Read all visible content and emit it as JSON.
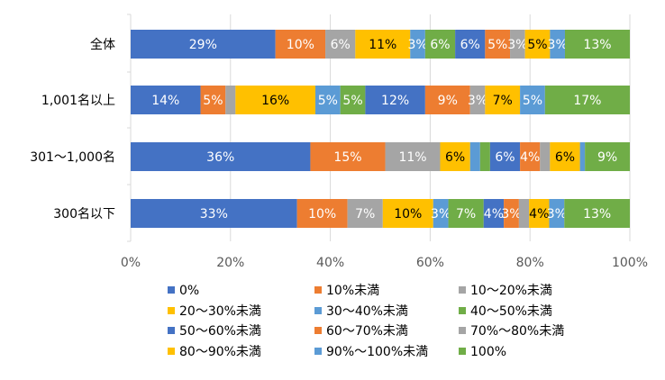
{
  "chart_data": {
    "type": "bar",
    "orientation": "horizontal",
    "stacked": true,
    "normalized": true,
    "xlim": [
      0,
      100
    ],
    "x_ticks": [
      "0%",
      "20%",
      "40%",
      "60%",
      "80%",
      "100%"
    ],
    "grid": true,
    "legend_position": "bottom",
    "categories": [
      "全体",
      "1,001名以上",
      "301〜1,000名",
      "300名以下"
    ],
    "series": [
      {
        "name": "0%",
        "color": "#4472C4",
        "label_color": "#FFFFFF",
        "values": [
          29,
          14,
          36,
          33
        ],
        "labels": [
          "29%",
          "14%",
          "36%",
          "33%"
        ]
      },
      {
        "name": "10%未満",
        "color": "#ED7D31",
        "label_color": "#FFFFFF",
        "values": [
          10,
          5,
          15,
          10
        ],
        "labels": [
          "10%",
          "5%",
          "15%",
          "10%"
        ]
      },
      {
        "name": "10〜20%未満",
        "color": "#A5A5A5",
        "label_color": "#FFFFFF",
        "values": [
          6,
          2,
          11,
          7
        ],
        "labels": [
          "6%",
          "",
          "11%",
          "7%"
        ]
      },
      {
        "name": "20〜30%未満",
        "color": "#FFC000",
        "label_color": "#000000",
        "values": [
          11,
          16,
          6,
          10
        ],
        "labels": [
          "11%",
          "16%",
          "6%",
          "10%"
        ]
      },
      {
        "name": "30〜40%未満",
        "color": "#5B9BD5",
        "label_color": "#FFFFFF",
        "values": [
          3,
          5,
          2,
          3
        ],
        "labels": [
          "3%",
          "5%",
          "",
          "3%"
        ]
      },
      {
        "name": "40〜50%未満",
        "color": "#70AD47",
        "label_color": "#FFFFFF",
        "values": [
          6,
          5,
          2,
          7
        ],
        "labels": [
          "6%",
          "5%",
          "",
          "7%"
        ]
      },
      {
        "name": "50〜60%未満",
        "color": "#4472C4",
        "label_color": "#FFFFFF",
        "values": [
          6,
          12,
          6,
          4
        ],
        "labels": [
          "6%",
          "12%",
          "6%",
          "4%"
        ]
      },
      {
        "name": "60〜70%未満",
        "color": "#ED7D31",
        "label_color": "#FFFFFF",
        "values": [
          5,
          9,
          4,
          3
        ],
        "labels": [
          "5%",
          "9%",
          "4%",
          "3%"
        ]
      },
      {
        "name": "70%〜80%未満",
        "color": "#A5A5A5",
        "label_color": "#FFFFFF",
        "values": [
          3,
          3,
          2,
          2
        ],
        "labels": [
          "3%",
          "3%",
          "",
          ""
        ]
      },
      {
        "name": "80〜90%未満",
        "color": "#FFC000",
        "label_color": "#000000",
        "values": [
          5,
          7,
          6,
          4
        ],
        "labels": [
          "5%",
          "7%",
          "6%",
          "4%"
        ]
      },
      {
        "name": "90%〜100%未満",
        "color": "#5B9BD5",
        "label_color": "#FFFFFF",
        "values": [
          3,
          5,
          1,
          3
        ],
        "labels": [
          "3%",
          "5%",
          "",
          "3%"
        ]
      },
      {
        "name": "100%",
        "color": "#70AD47",
        "label_color": "#FFFFFF",
        "values": [
          13,
          17,
          9,
          13
        ],
        "labels": [
          "13%",
          "17%",
          "9%",
          "13%"
        ]
      }
    ]
  }
}
